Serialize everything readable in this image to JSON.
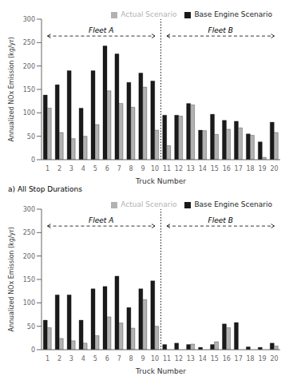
{
  "chart_data": [
    {
      "type": "bar",
      "subtitle": "a) All Stop Durations",
      "xlabel": "Truck Number",
      "ylabel": "Annualized NOx Emission (kg/yr)",
      "categories": [
        "1",
        "2",
        "3",
        "4",
        "5",
        "6",
        "7",
        "8",
        "9",
        "10",
        "11",
        "12",
        "13",
        "14",
        "15",
        "16",
        "17",
        "18",
        "19",
        "20"
      ],
      "series": [
        {
          "name": "Base Engine Scenario",
          "color": "#1a1a1a",
          "values": [
            138,
            160,
            190,
            110,
            190,
            243,
            226,
            165,
            185,
            168,
            95,
            95,
            120,
            63,
            97,
            84,
            82,
            55,
            38,
            80
          ]
        },
        {
          "name": "Actual Scenario",
          "color": "#b2b2b2",
          "values": [
            110,
            58,
            45,
            50,
            75,
            147,
            120,
            112,
            155,
            63,
            30,
            93,
            117,
            62,
            54,
            65,
            68,
            52,
            5,
            58
          ]
        }
      ],
      "ylim": [
        0,
        300
      ],
      "yticks": [
        0,
        50,
        100,
        150,
        200,
        250,
        300
      ],
      "grid": false,
      "legend": "upper right",
      "annotations": [
        {
          "text": "Fleet A",
          "from": "1",
          "to": "10"
        },
        {
          "text": "Fleet B",
          "from": "11",
          "to": "20"
        }
      ]
    },
    {
      "type": "bar",
      "xlabel": "Truck Number",
      "ylabel": "Annualized NOx Emission (kg/yr)",
      "categories": [
        "1",
        "2",
        "3",
        "4",
        "5",
        "6",
        "7",
        "8",
        "9",
        "10",
        "11",
        "12",
        "13",
        "14",
        "15",
        "16",
        "17",
        "18",
        "19",
        "20"
      ],
      "series": [
        {
          "name": "Base Engine Scenario",
          "color": "#1a1a1a",
          "values": [
            63,
            117,
            117,
            63,
            130,
            135,
            157,
            90,
            130,
            147,
            11,
            14,
            11,
            5,
            11,
            55,
            58,
            6,
            5,
            14
          ]
        },
        {
          "name": "Actual Scenario",
          "color": "#b2b2b2",
          "values": [
            47,
            24,
            19,
            14,
            30,
            70,
            57,
            46,
            107,
            50,
            0,
            0,
            12,
            0,
            17,
            47,
            0,
            0,
            0,
            8
          ]
        }
      ],
      "ylim": [
        0,
        300
      ],
      "yticks": [
        0,
        50,
        100,
        150,
        200,
        250,
        300
      ],
      "grid": false,
      "legend": "upper right",
      "annotations": [
        {
          "text": "Fleet A",
          "from": "1",
          "to": "10"
        },
        {
          "text": "Fleet B",
          "from": "11",
          "to": "20"
        }
      ]
    }
  ]
}
